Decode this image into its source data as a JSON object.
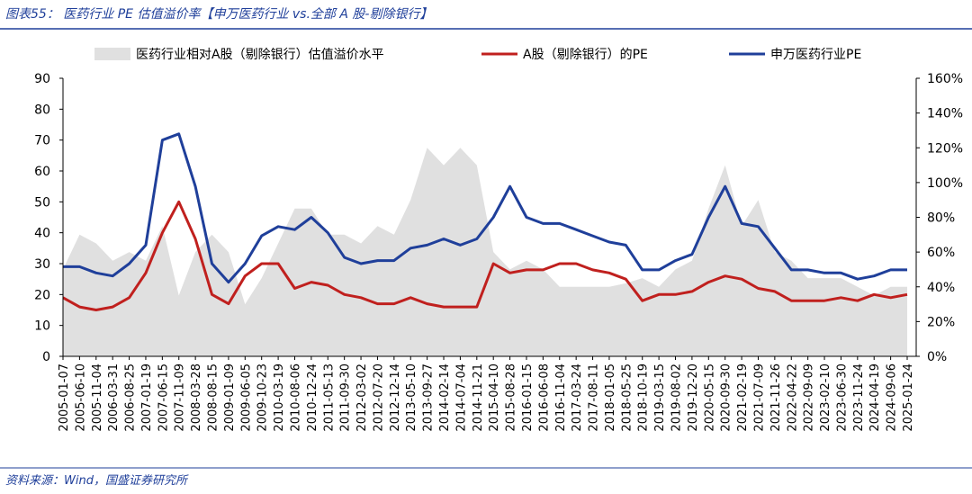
{
  "title": "图表55：  医药行业 PE 估值溢价率【申万医药行业 vs.全部 A 股-剔除银行】",
  "source": "资料来源：Wind，国盛证券研究所",
  "chart_data": {
    "type": "line",
    "categories": [
      "2005-01-07",
      "2005-06-10",
      "2005-11-04",
      "2006-03-31",
      "2006-08-25",
      "2007-01-19",
      "2007-06-15",
      "2007-11-09",
      "2008-03-28",
      "2008-08-15",
      "2009-01-09",
      "2009-06-05",
      "2009-10-23",
      "2010-03-19",
      "2010-08-06",
      "2010-12-24",
      "2011-05-13",
      "2011-09-30",
      "2012-03-02",
      "2012-07-20",
      "2012-12-14",
      "2013-05-10",
      "2013-09-27",
      "2014-02-14",
      "2014-07-04",
      "2014-11-21",
      "2015-04-10",
      "2015-08-28",
      "2016-01-15",
      "2016-06-08",
      "2016-11-04",
      "2017-03-24",
      "2017-08-11",
      "2018-01-05",
      "2018-05-25",
      "2018-10-19",
      "2019-03-15",
      "2019-08-02",
      "2019-12-20",
      "2020-05-15",
      "2020-09-30",
      "2021-02-19",
      "2021-07-09",
      "2021-11-26",
      "2022-04-22",
      "2022-09-09",
      "2023-02-10",
      "2023-06-30",
      "2023-11-24",
      "2024-04-19",
      "2024-09-06",
      "2025-01-24"
    ],
    "series": [
      {
        "name": "医药行业相对A股（剔除银行）估值溢价水平",
        "type": "area",
        "axis": "y2",
        "color": "#e0e0e0",
        "values": [
          50,
          70,
          65,
          55,
          60,
          55,
          75,
          35,
          60,
          70,
          60,
          30,
          45,
          65,
          85,
          85,
          70,
          70,
          65,
          75,
          70,
          90,
          120,
          110,
          120,
          110,
          60,
          50,
          55,
          50,
          40,
          40,
          40,
          40,
          42,
          45,
          40,
          50,
          55,
          85,
          110,
          75,
          90,
          60,
          55,
          45,
          45,
          45,
          40,
          35,
          40,
          40
        ]
      },
      {
        "name": "A股（剔除银行）的PE",
        "color": "#c0201e",
        "values": [
          19,
          16,
          15,
          16,
          19,
          27,
          40,
          50,
          38,
          20,
          17,
          26,
          30,
          30,
          22,
          24,
          23,
          20,
          19,
          17,
          17,
          19,
          17,
          16,
          16,
          16,
          30,
          27,
          28,
          28,
          30,
          30,
          28,
          27,
          25,
          18,
          20,
          20,
          21,
          24,
          26,
          25,
          22,
          21,
          18,
          18,
          18,
          19,
          18,
          20,
          19,
          20
        ]
      },
      {
        "name": "申万医药行业PE",
        "color": "#1f3f9a",
        "values": [
          29,
          29,
          27,
          26,
          30,
          36,
          70,
          72,
          55,
          30,
          24,
          30,
          39,
          42,
          41,
          45,
          40,
          32,
          30,
          31,
          31,
          35,
          36,
          38,
          36,
          38,
          45,
          55,
          45,
          43,
          43,
          41,
          39,
          37,
          36,
          28,
          28,
          31,
          33,
          45,
          55,
          43,
          42,
          35,
          28,
          28,
          27,
          27,
          25,
          26,
          28,
          28
        ]
      }
    ],
    "ylim": [
      0,
      90
    ],
    "yticks": [
      0,
      10,
      20,
      30,
      40,
      50,
      60,
      70,
      80,
      90
    ],
    "y2lim": [
      0,
      160
    ],
    "y2ticks": [
      {
        "value": 0,
        "label": "0%"
      },
      {
        "value": 20,
        "label": "20%"
      },
      {
        "value": 40,
        "label": "40%"
      },
      {
        "value": 60,
        "label": "60%"
      },
      {
        "value": 80,
        "label": "80%"
      },
      {
        "value": 100,
        "label": "100%"
      },
      {
        "value": 120,
        "label": "120%"
      },
      {
        "value": 140,
        "label": "140%"
      },
      {
        "value": 160,
        "label": "160%"
      }
    ]
  }
}
